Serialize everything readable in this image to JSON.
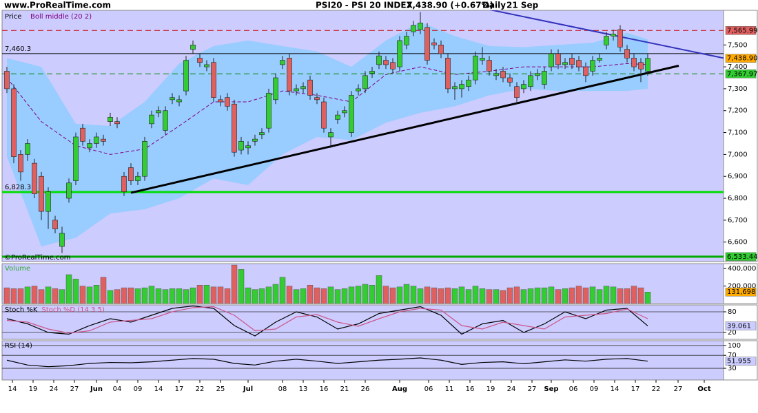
{
  "header": {
    "site": "www.ProRealTime.com",
    "title": "PSI20 - PSI 20 INDEX",
    "quote": "7,438.90 (+0.67%)",
    "period": "Daily",
    "date": "21 Sep"
  },
  "watermark": "©ProRealTime.com",
  "chart_data": [
    {
      "type": "candlestick",
      "name": "Price",
      "up_color": "#33cc33",
      "down_color": "#e06060",
      "x": [
        0,
        1,
        2,
        3,
        4,
        5,
        6,
        7,
        8,
        9,
        10,
        11,
        12,
        13,
        14,
        15,
        16,
        17,
        18,
        19,
        20,
        21,
        22,
        23,
        24,
        25,
        26,
        27,
        28,
        29,
        30,
        31,
        32,
        33,
        34,
        35,
        36,
        37,
        38,
        39,
        40,
        41,
        42,
        43,
        44,
        45,
        46,
        47,
        48,
        49,
        50,
        51,
        52,
        53,
        54,
        55,
        56,
        57,
        58,
        59,
        60,
        61,
        62,
        63,
        64,
        65,
        66,
        67,
        68,
        69,
        70,
        71,
        72,
        73,
        74,
        75,
        76,
        77,
        78,
        79,
        80,
        81,
        82,
        83,
        84,
        85,
        86,
        87,
        88,
        89,
        90,
        91,
        92,
        93
      ],
      "open": [
        7380,
        7300,
        7000,
        7000,
        6960,
        6900,
        6740,
        6700,
        6580,
        6800,
        6880,
        7120,
        7030,
        7050,
        7070,
        7150,
        7150,
        6900,
        6940,
        6880,
        6900,
        7140,
        7190,
        7110,
        7250,
        7240,
        7290,
        7480,
        7440,
        7400,
        7420,
        7250,
        7260,
        7230,
        7020,
        7030,
        7060,
        7090,
        7120,
        7250,
        7410,
        7440,
        7290,
        7300,
        7340,
        7260,
        7240,
        7080,
        7160,
        7190,
        7100,
        7290,
        7300,
        7370,
        7410,
        7430,
        7420,
        7400,
        7500,
        7560,
        7570,
        7580,
        7510,
        7500,
        7440,
        7300,
        7300,
        7310,
        7340,
        7430,
        7430,
        7360,
        7380,
        7350,
        7310,
        7300,
        7310,
        7360,
        7320,
        7400,
        7460,
        7410,
        7440,
        7430,
        7400,
        7380,
        7430,
        7500,
        7540,
        7570,
        7480,
        7440,
        7420,
        7380
      ],
      "high": [
        7400,
        7320,
        7020,
        7070,
        6980,
        6920,
        6850,
        6720,
        6670,
        6890,
        7100,
        7140,
        7070,
        7100,
        7090,
        7190,
        7170,
        6920,
        6960,
        6920,
        7080,
        7200,
        7220,
        7220,
        7280,
        7270,
        7450,
        7520,
        7460,
        7430,
        7440,
        7270,
        7280,
        7250,
        7080,
        7060,
        7090,
        7120,
        7300,
        7370,
        7450,
        7460,
        7320,
        7330,
        7360,
        7280,
        7260,
        7120,
        7200,
        7220,
        7290,
        7320,
        7380,
        7400,
        7470,
        7450,
        7440,
        7540,
        7560,
        7610,
        7650,
        7600,
        7530,
        7520,
        7460,
        7330,
        7340,
        7360,
        7470,
        7490,
        7450,
        7390,
        7400,
        7370,
        7330,
        7340,
        7380,
        7390,
        7400,
        7480,
        7480,
        7440,
        7460,
        7450,
        7420,
        7450,
        7460,
        7560,
        7570,
        7590,
        7500,
        7460,
        7440,
        7460
      ],
      "low": [
        7280,
        6960,
        6880,
        6970,
        6800,
        6700,
        6660,
        6640,
        6550,
        6780,
        6860,
        7040,
        7010,
        7030,
        7040,
        7130,
        7120,
        6810,
        6860,
        6860,
        6880,
        7120,
        7170,
        7090,
        7230,
        7220,
        7270,
        7460,
        7400,
        7380,
        7240,
        7220,
        7200,
        6990,
        7000,
        7000,
        7040,
        7070,
        7100,
        7230,
        7390,
        7270,
        7270,
        7280,
        7250,
        7230,
        7100,
        7030,
        7140,
        7170,
        7080,
        7270,
        7280,
        7350,
        7390,
        7390,
        7370,
        7380,
        7480,
        7540,
        7550,
        7410,
        7480,
        7440,
        7280,
        7250,
        7260,
        7290,
        7320,
        7410,
        7360,
        7340,
        7330,
        7310,
        7230,
        7280,
        7290,
        7340,
        7300,
        7380,
        7390,
        7390,
        7390,
        7380,
        7330,
        7360,
        7420,
        7480,
        7520,
        7470,
        7420,
        7380,
        7330,
        7360
      ],
      "close": [
        7300,
        6990,
        6920,
        7050,
        6820,
        6740,
        6830,
        6660,
        6640,
        6870,
        7080,
        7060,
        7050,
        7080,
        7060,
        7170,
        7140,
        6830,
        6880,
        6900,
        7060,
        7180,
        7200,
        7200,
        7260,
        7250,
        7430,
        7500,
        7420,
        7410,
        7260,
        7240,
        7220,
        7010,
        7060,
        7040,
        7070,
        7100,
        7280,
        7350,
        7430,
        7290,
        7300,
        7310,
        7270,
        7250,
        7120,
        7100,
        7180,
        7200,
        7270,
        7300,
        7360,
        7380,
        7450,
        7410,
        7390,
        7520,
        7540,
        7590,
        7600,
        7430,
        7500,
        7460,
        7300,
        7310,
        7320,
        7340,
        7450,
        7440,
        7380,
        7370,
        7350,
        7330,
        7260,
        7320,
        7360,
        7370,
        7380,
        7460,
        7410,
        7420,
        7410,
        7400,
        7360,
        7430,
        7440,
        7540,
        7550,
        7490,
        7440,
        7400,
        7390,
        7438.9
      ],
      "last_label": "7,438.90",
      "last_color": "#ffaa00",
      "boll": {
        "name": "Boll middle (20 2)",
        "band_color": "#99ccff",
        "middle_color": "#800080",
        "x": [
          0,
          5,
          10,
          15,
          20,
          25,
          30,
          35,
          40,
          45,
          50,
          55,
          60,
          65,
          70,
          75,
          80,
          85,
          90,
          93
        ],
        "upper": [
          7440,
          7400,
          7140,
          7130,
          7240,
          7415,
          7495,
          7520,
          7495,
          7470,
          7400,
          7520,
          7605,
          7540,
          7495,
          7490,
          7500,
          7510,
          7555,
          7525
        ],
        "middle": [
          7350,
          7150,
          7040,
          7000,
          7025,
          7130,
          7240,
          7240,
          7290,
          7270,
          7240,
          7365,
          7400,
          7365,
          7380,
          7400,
          7400,
          7400,
          7415,
          7410
        ],
        "lower": [
          6990,
          6580,
          6620,
          6730,
          6750,
          6800,
          6890,
          6860,
          7000,
          7080,
          7065,
          7145,
          7190,
          7220,
          7270,
          7300,
          7290,
          7290,
          7290,
          7300
        ]
      },
      "hlines": [
        {
          "value": 7565.99,
          "color": "#cc0000",
          "dash": true,
          "tag": "7,565.99",
          "tag_color": "#e06060"
        },
        {
          "value": 7460.3,
          "color": "#000000",
          "label": "7,460.3"
        },
        {
          "value": 7367.97,
          "color": "#008800",
          "dash": true,
          "tag": "7,367.97",
          "tag_color": "#33cc33"
        },
        {
          "value": 6828.3,
          "color": "#00dd00",
          "width": 3,
          "label": "6,828.3"
        },
        {
          "value": 6533.44,
          "color": "#00aa00",
          "width": 3,
          "tag": "6,533.44",
          "tag_color": "#33cc33"
        }
      ],
      "trendlines": [
        {
          "x": [
            18,
            97.5
          ],
          "y": [
            6825,
            7405
          ],
          "color": "#000000",
          "width": 3
        },
        {
          "x": [
            69,
            104
          ],
          "y": [
            7668,
            7440
          ],
          "color": "#3333bb",
          "width": 2
        }
      ],
      "xlim": [
        -0.7,
        104
      ],
      "ylim": [
        6511,
        7658
      ],
      "yticks": [
        {
          "value": 6600,
          "label": "6,600"
        },
        {
          "value": 6700,
          "label": "6,700"
        },
        {
          "value": 6800,
          "label": "6,800"
        },
        {
          "value": 6900,
          "label": "6,900"
        },
        {
          "value": 7000,
          "label": "7,000"
        },
        {
          "value": 7100,
          "label": "7,100"
        },
        {
          "value": 7200,
          "label": "7,200"
        },
        {
          "value": 7300,
          "label": "7,300"
        },
        {
          "value": 7400,
          "label": "7,400"
        },
        {
          "value": 7500,
          "label": "7,500"
        }
      ]
    },
    {
      "type": "bar",
      "name": "Volume",
      "values": [
        180000,
        170000,
        170000,
        190000,
        200000,
        160000,
        190000,
        170000,
        160000,
        330000,
        280000,
        200000,
        190000,
        210000,
        300000,
        150000,
        160000,
        180000,
        180000,
        170000,
        180000,
        200000,
        170000,
        160000,
        170000,
        170000,
        160000,
        180000,
        210000,
        210000,
        190000,
        190000,
        170000,
        440000,
        390000,
        180000,
        160000,
        170000,
        190000,
        220000,
        300000,
        200000,
        160000,
        170000,
        210000,
        180000,
        170000,
        190000,
        160000,
        170000,
        190000,
        200000,
        220000,
        210000,
        320000,
        200000,
        180000,
        190000,
        220000,
        200000,
        170000,
        190000,
        180000,
        170000,
        180000,
        170000,
        190000,
        160000,
        200000,
        170000,
        160000,
        160000,
        150000,
        180000,
        190000,
        160000,
        170000,
        180000,
        180000,
        190000,
        160000,
        170000,
        180000,
        200000,
        180000,
        190000,
        160000,
        200000,
        190000,
        170000,
        170000,
        200000,
        180000,
        131698
      ],
      "last_label": "131,698",
      "last_color": "#ffaa00",
      "xlim": [
        -0.7,
        104
      ],
      "ylim": [
        0,
        456000
      ],
      "yticks": [
        {
          "value": 400000,
          "label": "400,000"
        },
        {
          "value": 200000,
          "label": "200,000"
        }
      ]
    },
    {
      "type": "line",
      "x": [
        0,
        3,
        6,
        9,
        12,
        15,
        18,
        21,
        24,
        27,
        30,
        33,
        36,
        39,
        42,
        45,
        48,
        51,
        54,
        57,
        60,
        63,
        66,
        69,
        72,
        75,
        78,
        81,
        84,
        87,
        90,
        93
      ],
      "series": [
        {
          "name": "Stoch %K",
          "color": "#000000",
          "values": [
            60,
            45,
            20,
            15,
            40,
            60,
            50,
            70,
            90,
            97,
            90,
            40,
            10,
            50,
            80,
            65,
            30,
            45,
            75,
            85,
            95,
            70,
            15,
            45,
            55,
            20,
            45,
            80,
            60,
            85,
            90,
            39.061
          ]
        },
        {
          "name": "Stoch %D (14 3 5)",
          "color": "#cc5588",
          "values": [
            55,
            50,
            30,
            18,
            25,
            50,
            55,
            60,
            80,
            92,
            95,
            70,
            25,
            30,
            65,
            72,
            50,
            38,
            60,
            80,
            90,
            85,
            40,
            30,
            50,
            40,
            30,
            65,
            70,
            75,
            88,
            60
          ]
        }
      ],
      "last_color": "#ccccff",
      "xlim": [
        -0.7,
        104
      ],
      "ylim": [
        0,
        100
      ],
      "yticks": [
        80,
        20
      ]
    },
    {
      "type": "line",
      "x": [
        0,
        3,
        6,
        9,
        12,
        15,
        18,
        21,
        24,
        27,
        30,
        33,
        36,
        39,
        42,
        45,
        48,
        51,
        54,
        57,
        60,
        63,
        66,
        69,
        72,
        75,
        78,
        81,
        84,
        87,
        90,
        93
      ],
      "series": [
        {
          "name": "RSI (14)",
          "color": "#000000",
          "values": [
            55,
            40,
            35,
            38,
            45,
            48,
            47,
            50,
            55,
            60,
            58,
            45,
            40,
            52,
            58,
            52,
            45,
            50,
            55,
            58,
            62,
            55,
            42,
            48,
            50,
            44,
            50,
            56,
            52,
            58,
            60,
            51.955
          ]
        }
      ],
      "last_color": "#ccccff",
      "xlim": [
        -0.7,
        104
      ],
      "ylim": [
        -6,
        115
      ],
      "yticks": [
        100,
        70,
        30
      ],
      "xticks": [
        {
          "value": 0.8,
          "label": "14"
        },
        {
          "value": 3.8,
          "label": "19"
        },
        {
          "value": 6.8,
          "label": "24"
        },
        {
          "value": 9.8,
          "label": "27"
        },
        {
          "value": 13,
          "label": "Jun"
        },
        {
          "value": 16,
          "label": "04"
        },
        {
          "value": 19,
          "label": "09"
        },
        {
          "value": 22,
          "label": "14"
        },
        {
          "value": 25,
          "label": "17"
        },
        {
          "value": 28,
          "label": "22"
        },
        {
          "value": 31,
          "label": "25"
        },
        {
          "value": 35,
          "label": "Jul"
        },
        {
          "value": 40,
          "label": "08"
        },
        {
          "value": 43,
          "label": "13"
        },
        {
          "value": 46,
          "label": "16"
        },
        {
          "value": 49,
          "label": "21"
        },
        {
          "value": 52,
          "label": "26"
        },
        {
          "value": 57,
          "label": "Aug"
        },
        {
          "value": 61.2,
          "label": "06"
        },
        {
          "value": 64.2,
          "label": "11"
        },
        {
          "value": 67.2,
          "label": "16"
        },
        {
          "value": 70.2,
          "label": "19"
        },
        {
          "value": 73.2,
          "label": "24"
        },
        {
          "value": 76.2,
          "label": "27"
        },
        {
          "value": 79,
          "label": "Sep"
        },
        {
          "value": 82.2,
          "label": "06"
        },
        {
          "value": 85.2,
          "label": "09"
        },
        {
          "value": 88.2,
          "label": "14"
        },
        {
          "value": 91.2,
          "label": "17"
        },
        {
          "value": 94.2,
          "label": "22"
        },
        {
          "value": 97.4,
          "label": "27"
        },
        {
          "value": 101.2,
          "label": "Oct"
        }
      ]
    }
  ]
}
